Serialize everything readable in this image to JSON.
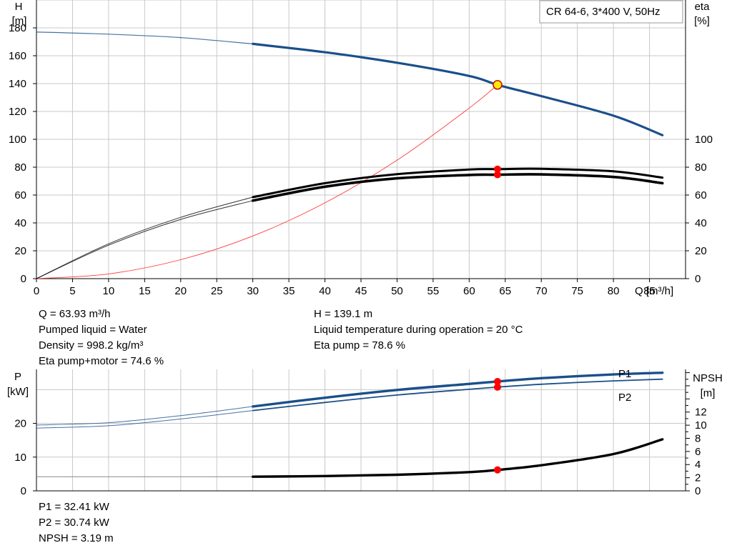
{
  "title": "CR 64-6, 3*400 V, 50Hz",
  "colors": {
    "head": "#1a4f8a",
    "power": "#1a4f8a",
    "eta": "#000000",
    "npsh": "#000000",
    "system": "#ff3b3b",
    "point": "#ff0000",
    "grid": "#c8c8c8"
  },
  "chart_data": [
    {
      "type": "line",
      "name": "head-efficiency",
      "x_label": "Q [m³/h]",
      "x_ticks": [
        "0",
        "5",
        "10",
        "15",
        "20",
        "25",
        "30",
        "35",
        "40",
        "45",
        "50",
        "55",
        "60",
        "65",
        "70",
        "75",
        "80",
        "85"
      ],
      "xlim": [
        0,
        90
      ],
      "left_axis": {
        "label_top": "H",
        "label_unit": "[m]",
        "ticks": [
          "0",
          "20",
          "40",
          "60",
          "80",
          "100",
          "120",
          "140",
          "160",
          "180"
        ],
        "ylim": [
          0,
          200
        ]
      },
      "right_axis": {
        "label_top": "eta",
        "label_unit": "[%]",
        "ticks": [
          "0",
          "20",
          "40",
          "60",
          "80",
          "100"
        ],
        "ylim": [
          0,
          200
        ]
      },
      "series": [
        {
          "key": "H",
          "axis": "left",
          "points": [
            [
              0,
              177
            ],
            [
              10,
              175.5
            ],
            [
              20,
              173
            ],
            [
              30,
              168.5
            ],
            [
              40,
              162.5
            ],
            [
              50,
              155
            ],
            [
              60,
              145.5
            ],
            [
              63.93,
              139.1
            ],
            [
              70,
              131
            ],
            [
              80,
              117
            ],
            [
              86.8,
              103
            ]
          ]
        },
        {
          "key": "eta_pump",
          "axis": "right",
          "points": [
            [
              0,
              0
            ],
            [
              10,
              25
            ],
            [
              20,
              44
            ],
            [
              30,
              58.5
            ],
            [
              40,
              68.5
            ],
            [
              50,
              75
            ],
            [
              60,
              78.3
            ],
            [
              63.93,
              78.6
            ],
            [
              70,
              78.8
            ],
            [
              80,
              77
            ],
            [
              86.8,
              72.5
            ]
          ]
        },
        {
          "key": "eta_total",
          "axis": "right",
          "points": [
            [
              0,
              0
            ],
            [
              10,
              24
            ],
            [
              20,
              42.5
            ],
            [
              30,
              56
            ],
            [
              40,
              66
            ],
            [
              50,
              72
            ],
            [
              60,
              74.4
            ],
            [
              63.93,
              74.6
            ],
            [
              70,
              74.8
            ],
            [
              80,
              73
            ],
            [
              86.8,
              68.5
            ]
          ]
        },
        {
          "key": "system_curve",
          "axis": "left",
          "points": [
            [
              0,
              0
            ],
            [
              10,
              3.4
            ],
            [
              20,
              13.6
            ],
            [
              30,
              30.6
            ],
            [
              40,
              54.4
            ],
            [
              50,
              85
            ],
            [
              60,
              122.4
            ],
            [
              63.93,
              139.1
            ]
          ]
        }
      ],
      "operating_point": {
        "x": 63.93,
        "H": 139.1,
        "eta_pump": 78.6,
        "eta_total": 74.6
      }
    },
    {
      "type": "line",
      "name": "power-npsh",
      "left_axis": {
        "label_top": "P",
        "label_unit": "[kW]",
        "ticks": [
          "0",
          "10",
          "20"
        ],
        "ylim": [
          0,
          36
        ]
      },
      "right_axis": {
        "label_top": "NPSH",
        "label_unit": "[m]",
        "ticks": [
          "0",
          "2",
          "4",
          "6",
          "8",
          "10",
          "12"
        ],
        "ylim": [
          0,
          18.5
        ]
      },
      "series": [
        {
          "key": "P1",
          "name": "P1",
          "axis": "left",
          "points": [
            [
              0,
              19.5
            ],
            [
              10,
              20.2
            ],
            [
              20,
              22.3
            ],
            [
              30,
              25
            ],
            [
              40,
              27.6
            ],
            [
              50,
              29.9
            ],
            [
              60,
              31.7
            ],
            [
              63.93,
              32.41
            ],
            [
              70,
              33.4
            ],
            [
              80,
              34.5
            ],
            [
              86.8,
              35
            ]
          ]
        },
        {
          "key": "P2",
          "name": "P2",
          "axis": "left",
          "points": [
            [
              0,
              18.6
            ],
            [
              10,
              19.3
            ],
            [
              20,
              21.3
            ],
            [
              30,
              23.8
            ],
            [
              40,
              26.2
            ],
            [
              50,
              28.4
            ],
            [
              60,
              30.1
            ],
            [
              63.93,
              30.74
            ],
            [
              70,
              31.6
            ],
            [
              80,
              32.6
            ],
            [
              86.8,
              33.1
            ]
          ]
        },
        {
          "key": "NPSH",
          "axis": "right",
          "points": [
            [
              0,
              2.15
            ],
            [
              30,
              2.15
            ],
            [
              40,
              2.25
            ],
            [
              50,
              2.45
            ],
            [
              60,
              2.85
            ],
            [
              63.93,
              3.19
            ],
            [
              70,
              3.9
            ],
            [
              80,
              5.6
            ],
            [
              86.8,
              7.85
            ]
          ]
        }
      ],
      "operating_point": {
        "x": 63.93,
        "P1": 32.41,
        "P2": 30.74,
        "NPSH": 3.19
      }
    }
  ],
  "info_top": {
    "q": "Q = 63.93 m³/h",
    "h": "H = 139.1 m",
    "liquid": "Pumped liquid = Water",
    "temp": "Liquid temperature during operation = 20 °C",
    "density": "Density = 998.2 kg/m³",
    "eta_pump": "Eta pump = 78.6 %",
    "eta_total": "Eta pump+motor = 74.6 %"
  },
  "info_bottom": {
    "p1": "P1 = 32.41 kW",
    "p2": "P2 = 30.74 kW",
    "npsh": "NPSH = 3.19 m"
  }
}
